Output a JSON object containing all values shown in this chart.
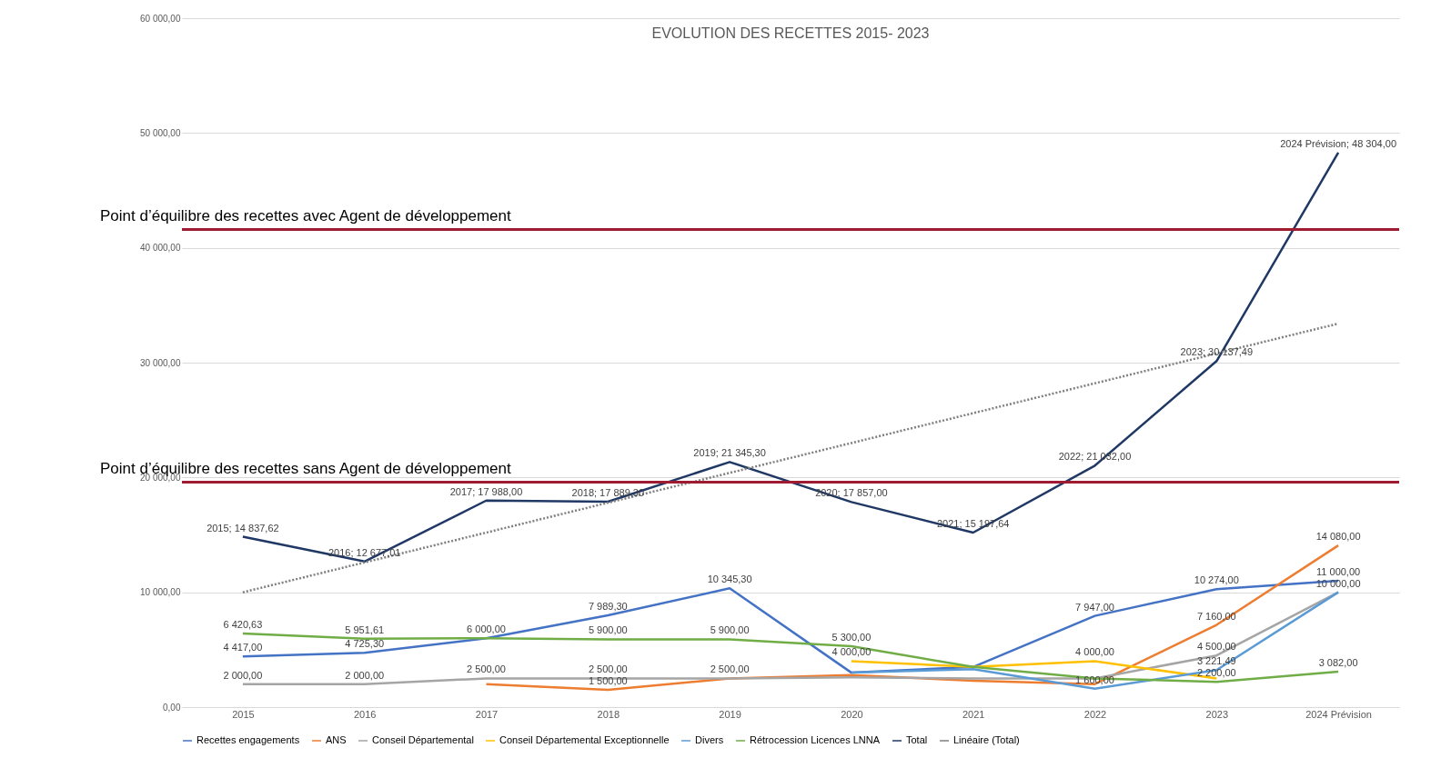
{
  "chart_data": {
    "type": "line",
    "title": "EVOLUTION DES RECETTES 2015- 2023",
    "categories": [
      "2015",
      "2016",
      "2017",
      "2018",
      "2019",
      "2020",
      "2021",
      "2022",
      "2023",
      "2024 Prévision"
    ],
    "series": [
      {
        "name": "Recettes engagements",
        "color": "#4472c4",
        "values": [
          4417,
          4725.3,
          6000,
          7989.3,
          10345.3,
          3000,
          3500,
          7947,
          10274,
          11000
        ],
        "value_labels": [
          "4 417,00",
          "4 725,30",
          "6 000,00",
          "7 989,30",
          "10 345,30",
          null,
          null,
          "7 947,00",
          "10 274,00",
          "11 000,00"
        ]
      },
      {
        "name": "ANS",
        "color": "#ed7d31",
        "values": [
          null,
          null,
          2000,
          1500,
          2500,
          2800,
          2300,
          2000,
          7160,
          14080
        ],
        "value_labels": [
          null,
          null,
          null,
          "1 500,00",
          null,
          null,
          null,
          null,
          "7 160,00",
          "14 080,00"
        ]
      },
      {
        "name": "Conseil Départemental",
        "color": "#a5a5a5",
        "values": [
          2000,
          2000,
          2500,
          2500,
          2500,
          2600,
          2500,
          2500,
          4500,
          10000
        ],
        "value_labels": [
          "2 000,00",
          "2 000,00",
          "2 500,00",
          "2 500,00",
          "2 500,00",
          null,
          null,
          null,
          "4 500,00",
          null
        ]
      },
      {
        "name": "Conseil Départemental Exceptionnelle",
        "color": "#ffc000",
        "values": [
          null,
          null,
          null,
          null,
          null,
          4000,
          3500,
          4000,
          2500,
          null
        ],
        "value_labels": [
          null,
          null,
          null,
          null,
          null,
          "4 000,00",
          null,
          "4 000,00",
          null,
          null
        ]
      },
      {
        "name": "Divers",
        "color": "#5b9bd5",
        "values": [
          null,
          null,
          null,
          null,
          null,
          3000,
          3300,
          1600,
          3221.49,
          10000
        ],
        "value_labels": [
          null,
          null,
          null,
          null,
          null,
          null,
          null,
          "1 600,00",
          "3 221,49",
          "10 000,00"
        ]
      },
      {
        "name": "Rétrocession Licences LNNA",
        "color": "#70ad47",
        "values": [
          6420.63,
          5951.61,
          6000,
          5900,
          5900,
          5300,
          3500,
          2500,
          2200,
          3082
        ],
        "value_labels": [
          "6 420,63",
          "5 951,61",
          null,
          "5 900,00",
          "5 900,00",
          "5 300,00",
          null,
          null,
          "2 200,00",
          "3 082,00"
        ]
      },
      {
        "name": "Total",
        "color": "#203864",
        "values": [
          14837.62,
          12677.01,
          17988,
          17889.3,
          21345.3,
          17857,
          15197.64,
          21032,
          30137.49,
          48304
        ],
        "value_labels": [
          "2015; 14 837,62",
          "2016; 12 677,01",
          "2017; 17 988,00",
          "2018; 17 889,30",
          "2019; 21 345,30",
          "2020; 17 857,00",
          "2021; 15 197,64",
          "2022; 21 032,00",
          "2023; 30 137,49",
          "2024 Prévision; 48 304,00"
        ]
      },
      {
        "name": "Linéaire (Total)",
        "color": "#7f7f7f",
        "line_style": "dotted",
        "values": [
          10000,
          12600,
          15200,
          17800,
          20400,
          23000,
          25600,
          28200,
          30800,
          33400
        ]
      }
    ],
    "ylim": [
      0,
      60000
    ],
    "yticks": [
      {
        "value": 0,
        "label": "0,00"
      },
      {
        "value": 10000,
        "label": "10 000,00"
      },
      {
        "value": 20000,
        "label": "20 000,00"
      },
      {
        "value": 30000,
        "label": "30 000,00"
      },
      {
        "value": 40000,
        "label": "40 000,00"
      },
      {
        "value": 50000,
        "label": "50 000,00"
      },
      {
        "value": 60000,
        "label": "60 000,00"
      }
    ],
    "grid": "y",
    "legend": "bottom",
    "line_style": "solid",
    "marker": "none",
    "ref_lines": [
      {
        "axis": "y",
        "value": 41600,
        "label": "Point d’équilibre des recettes avec Agent de développement",
        "color": "#9e1b32"
      },
      {
        "axis": "y",
        "value": 19600,
        "label": "Point d’équilibre des recettes sans Agent de développement",
        "color": "#9e1b32"
      }
    ]
  }
}
